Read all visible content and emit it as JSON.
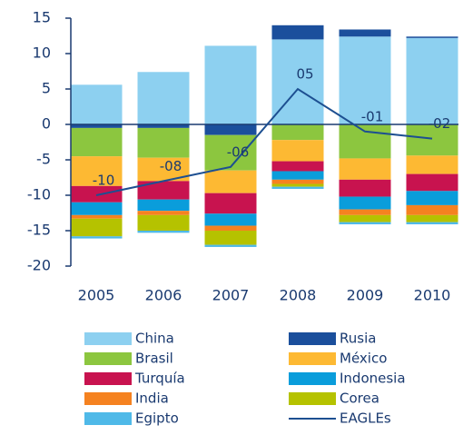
{
  "chart_data": {
    "type": "bar",
    "categories": [
      "2005",
      "2006",
      "2007",
      "2008",
      "2009",
      "2010"
    ],
    "ylim": [
      -20,
      15
    ],
    "yticks": [
      -20,
      -15,
      -10,
      -5,
      0,
      5,
      10,
      15
    ],
    "stacked": true,
    "series": [
      {
        "name": "China",
        "color": "#8dd0f0",
        "values": [
          5.6,
          7.4,
          11.1,
          12,
          12.4,
          12.2
        ]
      },
      {
        "name": "Rusia",
        "color": "#1b4f9c",
        "values": [
          -0.5,
          -0.5,
          -1.5,
          2,
          1,
          0.2
        ]
      },
      {
        "name": "Brasil",
        "color": "#8cc63f",
        "values": [
          -4,
          -4.2,
          -5,
          -2.2,
          -4.8,
          -4.4
        ]
      },
      {
        "name": "México",
        "color": "#fdb933",
        "values": [
          -4.2,
          -3.3,
          -3.2,
          -3,
          -3,
          -2.6
        ]
      },
      {
        "name": "Turquía",
        "color": "#c8134f",
        "values": [
          -2.3,
          -2.6,
          -2.9,
          -1.4,
          -2.4,
          -2.4
        ]
      },
      {
        "name": "Indonesia",
        "color": "#0a9ddb",
        "values": [
          -1.8,
          -1.6,
          -1.7,
          -1.2,
          -1.8,
          -2
        ]
      },
      {
        "name": "India",
        "color": "#f58220",
        "values": [
          -0.5,
          -0.6,
          -0.7,
          -0.6,
          -0.8,
          -1.4
        ]
      },
      {
        "name": "Corea",
        "color": "#b5c200",
        "values": [
          -2.5,
          -2.2,
          -2,
          -0.4,
          -1,
          -1
        ]
      },
      {
        "name": "Egipto",
        "color": "#4fb9e8",
        "values": [
          -0.3,
          -0.3,
          -0.3,
          -0.3,
          -0.3,
          -0.3
        ]
      },
      {
        "name": "EAGLEs",
        "type": "line",
        "color": "#1d4f91",
        "values": [
          -10,
          -8,
          -6,
          5,
          -1,
          -2
        ],
        "value_labels": [
          "-10",
          "-08",
          "-06",
          "05",
          "-01",
          "-02"
        ]
      }
    ]
  }
}
